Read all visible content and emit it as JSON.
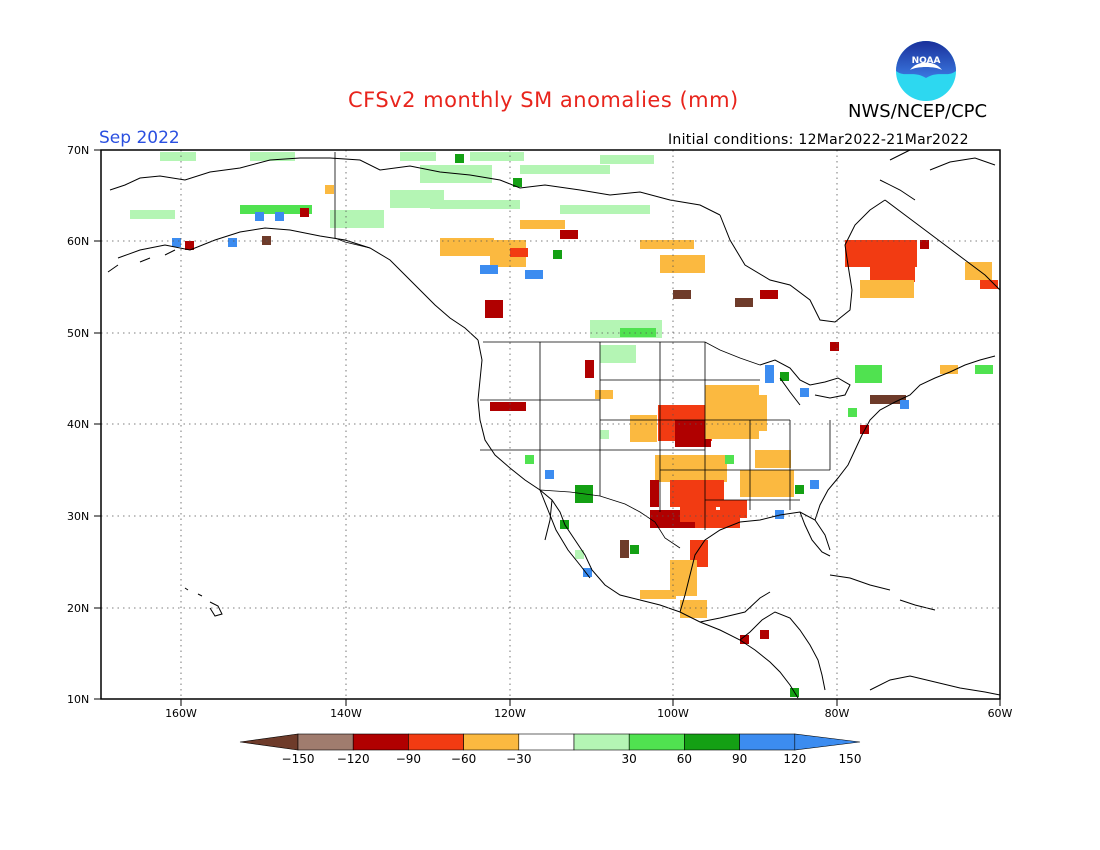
{
  "header": {
    "title": "CFSv2 monthly SM anomalies (mm)",
    "agency": "NWS/NCEP/CPC",
    "valid_month": "Sep 2022",
    "initial_conditions": "Initial conditions: 12Mar2022-21Mar2022",
    "logo_text": "NOAA"
  },
  "map": {
    "lat_labels": [
      "70N",
      "60N",
      "50N",
      "40N",
      "30N",
      "20N",
      "10N"
    ],
    "lon_labels": [
      "160W",
      "140W",
      "120W",
      "100W",
      "80W",
      "60W"
    ]
  },
  "colorbar": {
    "labels": [
      "-150",
      "-120",
      "-90",
      "-60",
      "-30",
      "30",
      "60",
      "90",
      "120",
      "150"
    ],
    "colors": [
      "#6e3b2a",
      "#a07c6e",
      "#b00000",
      "#f23b12",
      "#fbb940",
      "#ffffff",
      "#b4f5b4",
      "#50e250",
      "#14a014",
      "#3c8cf0",
      "#3c8cf0"
    ]
  }
}
